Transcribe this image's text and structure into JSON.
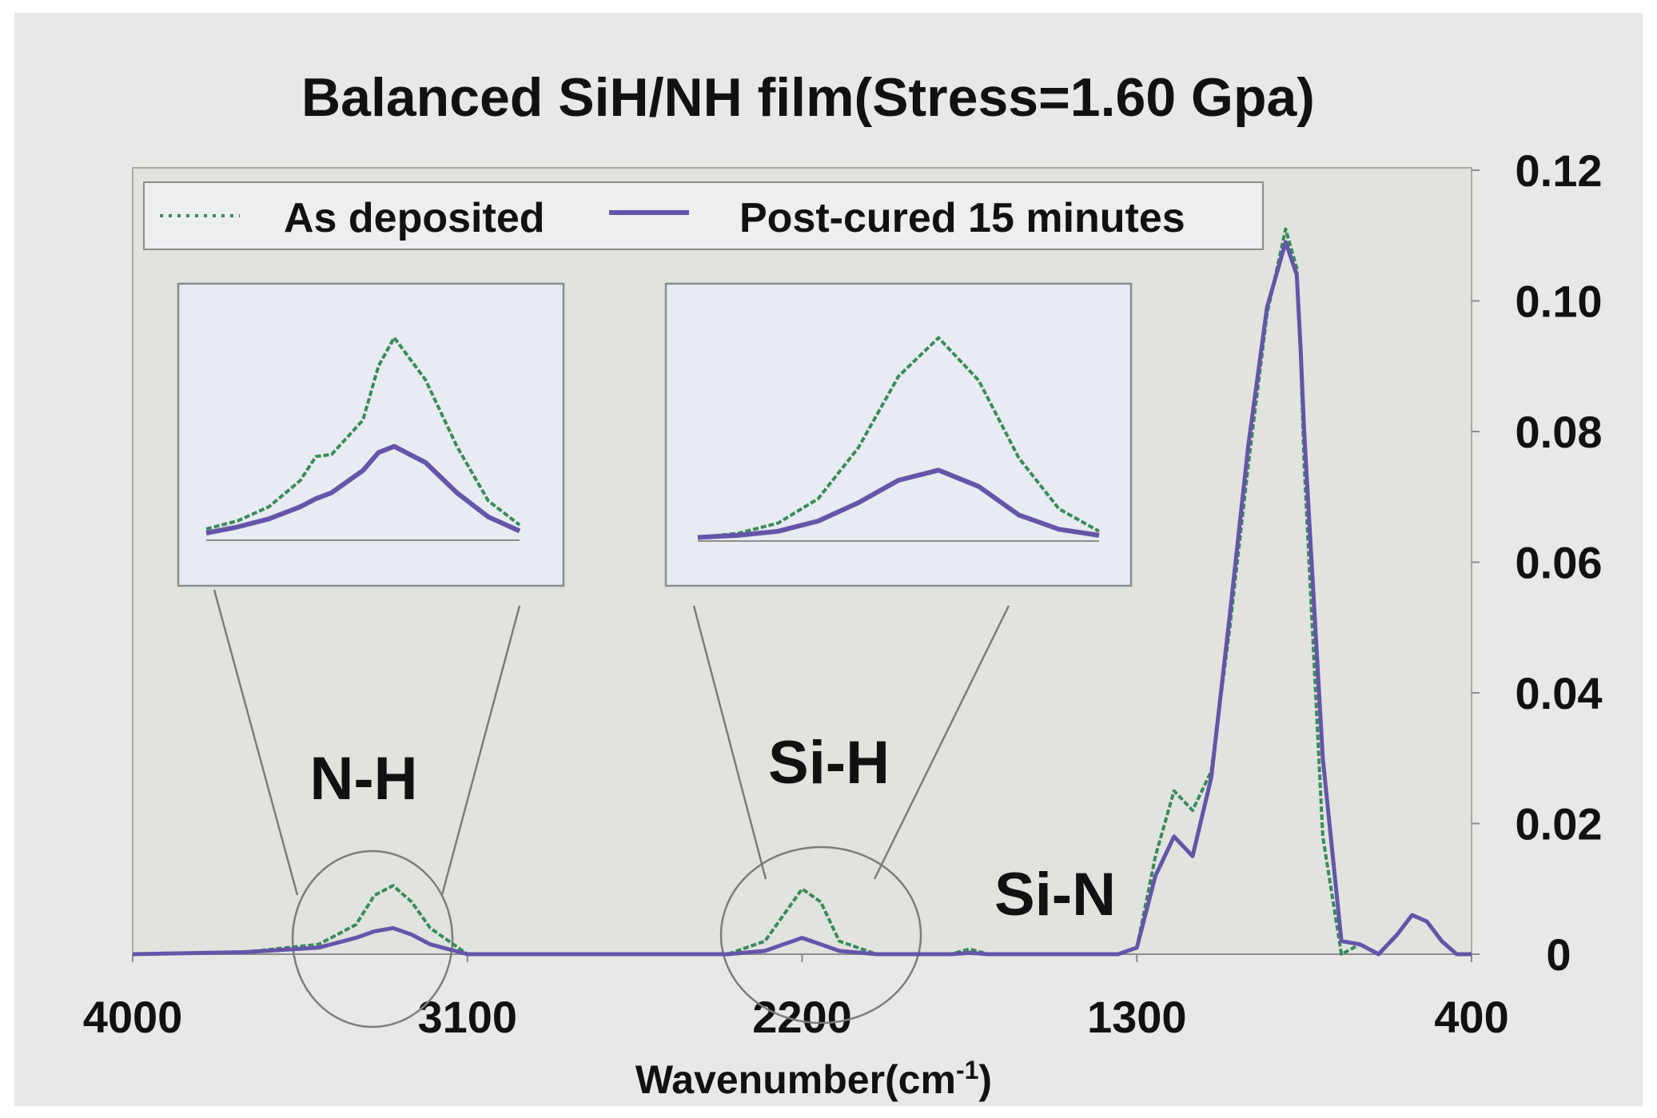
{
  "chart_data": {
    "type": "line",
    "title": "Balanced SiH/NH film(Stress=1.60 Gpa)",
    "xlabel": "Wavenumber(cm",
    "xlabel_sup": "-1",
    "xlabel_close": ")",
    "ylabel": "",
    "xlim": [
      4000,
      400
    ],
    "ylim": [
      0,
      0.12
    ],
    "x_reversed": true,
    "y_axis_side": "right",
    "grid": false,
    "x_ticks": [
      "4000",
      "3100",
      "2200",
      "1300",
      "400"
    ],
    "y_ticks": [
      "0.12",
      "0.10",
      "0.08",
      "0.06",
      "0.04",
      "0.02",
      "0"
    ],
    "legend": {
      "position": "top",
      "entries": [
        "As deposited",
        "Post-cured 15 minutes"
      ]
    },
    "annotations": [
      "N-H",
      "Si-H",
      "Si-N"
    ],
    "x": [
      4000,
      3700,
      3500,
      3400,
      3350,
      3300,
      3250,
      3200,
      3100,
      3000,
      2700,
      2400,
      2300,
      2250,
      2200,
      2150,
      2100,
      2000,
      1800,
      1750,
      1700,
      1600,
      1400,
      1350,
      1300,
      1250,
      1200,
      1150,
      1100,
      1050,
      1000,
      950,
      900,
      870,
      860,
      850,
      800,
      750,
      700,
      650,
      600,
      560,
      520,
      480,
      440,
      400
    ],
    "series": [
      {
        "name": "As deposited",
        "color": "#3a8a5a",
        "values": [
          0,
          0.0003,
          0.0015,
          0.0045,
          0.009,
          0.0105,
          0.008,
          0.004,
          0,
          0,
          0,
          0,
          0.002,
          0.006,
          0.01,
          0.008,
          0.002,
          0,
          0,
          0.0008,
          0,
          0,
          0,
          0,
          0.001,
          0.015,
          0.025,
          0.022,
          0.028,
          0.05,
          0.075,
          0.098,
          0.111,
          0.105,
          0.092,
          0.075,
          0.018,
          0,
          0.0015,
          0,
          0.003,
          0.006,
          0.005,
          0.002,
          0,
          0
        ]
      },
      {
        "name": "Post-cured 15 minutes",
        "color": "#6455a8",
        "values": [
          0,
          0.0003,
          0.001,
          0.0025,
          0.0035,
          0.004,
          0.003,
          0.0015,
          0,
          0,
          0,
          0,
          0.0005,
          0.0015,
          0.0025,
          0.0015,
          0.0005,
          0,
          0,
          0.0002,
          0,
          0,
          0,
          0,
          0.001,
          0.012,
          0.018,
          0.015,
          0.027,
          0.052,
          0.078,
          0.099,
          0.109,
          0.104,
          0.093,
          0.08,
          0.03,
          0.002,
          0.0015,
          0,
          0.003,
          0.006,
          0.005,
          0.002,
          0,
          0
        ]
      }
    ],
    "insets": [
      {
        "label": "N-H",
        "x": [
          0,
          0.1,
          0.2,
          0.3,
          0.35,
          0.4,
          0.5,
          0.55,
          0.6,
          0.7,
          0.8,
          0.9,
          1.0
        ],
        "as_deposited": [
          0.04,
          0.08,
          0.15,
          0.28,
          0.4,
          0.41,
          0.58,
          0.85,
          0.99,
          0.78,
          0.45,
          0.18,
          0.06
        ],
        "post_cured": [
          0.02,
          0.05,
          0.09,
          0.15,
          0.19,
          0.22,
          0.33,
          0.42,
          0.45,
          0.37,
          0.22,
          0.1,
          0.03
        ]
      },
      {
        "label": "Si-H",
        "x": [
          0,
          0.1,
          0.2,
          0.3,
          0.4,
          0.5,
          0.6,
          0.7,
          0.8,
          0.9,
          1.0
        ],
        "as_deposited": [
          0.01,
          0.03,
          0.08,
          0.2,
          0.45,
          0.8,
          0.99,
          0.78,
          0.4,
          0.15,
          0.04
        ],
        "post_cured": [
          0.01,
          0.02,
          0.04,
          0.09,
          0.18,
          0.29,
          0.34,
          0.26,
          0.12,
          0.05,
          0.02
        ]
      }
    ]
  }
}
